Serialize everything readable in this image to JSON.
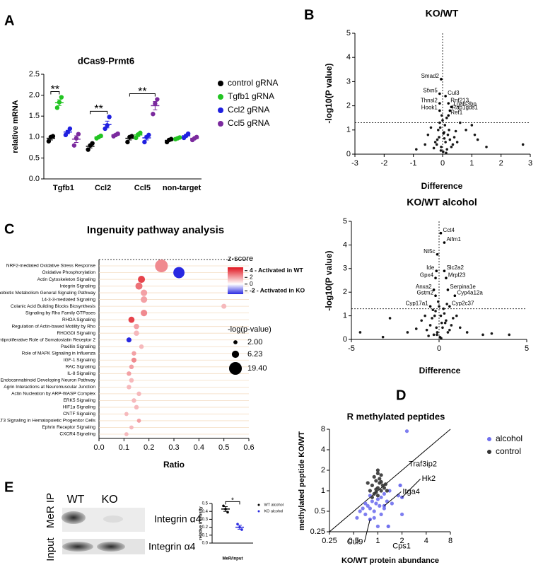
{
  "chart_data": [
    {
      "type": "dot",
      "panel": "A",
      "title": "dCas9-Prmt6",
      "ylabel": "relative mRNA",
      "categories": [
        "Tgfb1",
        "Ccl2",
        "Ccl5",
        "non-target"
      ],
      "ylim": [
        0,
        2.5
      ],
      "yticks": [
        {
          "value": 0,
          "label": "0.0"
        },
        0.5,
        {
          "value": 1,
          "label": "1.0"
        },
        1.5,
        {
          "value": 2,
          "label": "2.0"
        },
        2.5
      ],
      "significance": [
        "**",
        "**",
        "**",
        null
      ],
      "legend": "right",
      "series": [
        {
          "name": "control gRNA",
          "color": "#000000",
          "values": [
            0.97,
            0.78,
            0.97,
            0.92
          ],
          "errors": [
            0.04,
            0.04,
            0.04,
            0.02
          ],
          "points": [
            [
              0.9,
              1.0,
              1.02
            ],
            [
              0.7,
              0.8,
              0.85
            ],
            [
              0.88,
              1.0,
              1.02
            ],
            [
              0.88,
              0.93,
              0.95
            ]
          ]
        },
        {
          "name": "Tgfb1 gRNA",
          "color": "#22c422",
          "values": [
            1.82,
            1.0,
            1.05,
            0.97
          ],
          "errors": [
            0.07,
            0.02,
            0.04,
            0.01
          ],
          "points": [
            [
              1.7,
              1.83,
              1.95
            ],
            [
              0.97,
              1.0,
              1.03
            ],
            [
              0.98,
              1.06,
              1.1
            ],
            [
              0.95,
              0.97,
              0.99
            ]
          ]
        },
        {
          "name": "Ccl2 gRNA",
          "color": "#1f1fe0",
          "values": [
            1.12,
            1.3,
            0.98,
            1.03
          ],
          "errors": [
            0.04,
            0.08,
            0.05,
            0.03
          ],
          "points": [
            [
              1.05,
              1.12,
              1.2
            ],
            [
              1.2,
              1.28,
              1.48
            ],
            [
              0.88,
              1.0,
              1.05
            ],
            [
              0.98,
              1.03,
              1.08
            ]
          ]
        },
        {
          "name": "Ccl5 gRNA",
          "color": "#7b2a9e",
          "values": [
            0.95,
            1.05,
            1.75,
            0.97
          ],
          "errors": [
            0.08,
            0.02,
            0.1,
            0.02
          ],
          "points": [
            [
              0.8,
              0.97,
              1.07
            ],
            [
              1.02,
              1.05,
              1.08
            ],
            [
              1.55,
              1.8,
              1.9
            ],
            [
              0.93,
              0.97,
              1.0
            ]
          ]
        }
      ]
    },
    {
      "type": "scatter",
      "panel": "B",
      "title": "KO/WT",
      "xlabel": "Difference",
      "ylabel": "-log10(P value)",
      "xlim": [
        -3,
        3
      ],
      "xticks": [
        -3,
        -2,
        -1,
        0,
        1,
        2,
        3
      ],
      "ylim": [
        0,
        5
      ],
      "yticks": [
        0,
        1,
        2,
        3,
        4,
        5
      ],
      "vline": 0,
      "hline": 1.3,
      "annotation_color": "#000000",
      "series": [
        {
          "color": "#000000",
          "x": [
            0.02,
            -0.05,
            0.1,
            -0.12,
            0.15,
            0.05,
            -0.2,
            0.25,
            -0.08,
            0.3,
            0.0,
            -0.15,
            0.18,
            0.08,
            -0.25,
            0.35,
            -0.03,
            0.12,
            0.22,
            -0.1,
            0.06,
            0.4,
            -0.3,
            0.14,
            -0.06,
            0.5,
            0.03,
            -0.18,
            2.75,
            1.5,
            1.2,
            1.1,
            0.8,
            -0.6,
            -0.5,
            -0.9,
            1.0,
            0.6,
            -0.4,
            0.45
          ],
          "y": [
            0.1,
            0.3,
            0.5,
            0.7,
            0.2,
            0.9,
            0.4,
            0.6,
            1.1,
            0.3,
            1.4,
            1.0,
            0.8,
            1.2,
            0.5,
            0.4,
            1.6,
            0.05,
            1.0,
            1.3,
            0.65,
            0.7,
            0.25,
            1.5,
            0.15,
            0.5,
            0.85,
            0.6,
            0.4,
            0.3,
            0.6,
            0.8,
            1.0,
            0.4,
            0.8,
            0.2,
            1.2,
            1.3,
            1.1,
            0.95
          ]
        }
      ],
      "annotations": [
        {
          "text": "Smad2",
          "x": -0.05,
          "y": 3.1
        },
        {
          "text": "Sfxn5",
          "x": -0.1,
          "y": 2.5
        },
        {
          "text": "Thnsl2",
          "x": -0.1,
          "y": 2.1
        },
        {
          "text": "Hook1",
          "x": -0.1,
          "y": 1.8
        },
        {
          "text": "Cul3",
          "x": 0.1,
          "y": 2.4
        },
        {
          "text": "Rnf213",
          "x": 0.2,
          "y": 2.1
        },
        {
          "text": "Lgals3bp",
          "x": 0.3,
          "y": 1.95
        },
        {
          "text": "Rap1gds1",
          "x": 0.25,
          "y": 1.8
        },
        {
          "text": "Ref1",
          "x": 0.2,
          "y": 1.6
        }
      ]
    },
    {
      "type": "scatter",
      "title": "KO/WT alcohol",
      "xlabel": "Difference",
      "ylabel": "-log10(P value)",
      "xlim": [
        -5,
        5
      ],
      "xticks": [
        -5,
        0,
        5
      ],
      "ylim": [
        0,
        5
      ],
      "yticks": [
        0,
        1,
        2,
        3,
        4,
        5
      ],
      "vline": 0,
      "hline": 1.3,
      "annotation_color": "#000000",
      "series": [
        {
          "color": "#000000",
          "x": [
            0.05,
            -0.1,
            0.2,
            -0.3,
            0.4,
            -0.5,
            0.6,
            0.1,
            -0.2,
            0.3,
            -0.4,
            0.0,
            0.5,
            -0.6,
            0.15,
            -0.15,
            0.25,
            -0.25,
            0.7,
            -0.7,
            1.2,
            -1.0,
            1.6,
            -1.8,
            2.5,
            -2.8,
            3.0,
            -3.2,
            -4.5,
            4.0,
            0.35,
            -0.05,
            0.45,
            -0.35,
            0.8,
            -0.8,
            0.12,
            -0.12,
            1.0,
            -1.3
          ],
          "y": [
            0.1,
            0.3,
            0.5,
            0.2,
            0.8,
            0.6,
            0.4,
            1.0,
            1.2,
            1.1,
            0.9,
            1.4,
            0.3,
            0.15,
            0.7,
            0.5,
            1.3,
            1.0,
            0.6,
            0.4,
            0.5,
            0.8,
            0.3,
            0.3,
            0.2,
            0.9,
            0.25,
            0.1,
            0.3,
            0.2,
            0.7,
            1.6,
            1.5,
            1.25,
            0.9,
            1.0,
            0.05,
            0.2,
            1.0,
            0.45
          ]
        }
      ],
      "annotations": [
        {
          "text": "Cct4",
          "x": 0.1,
          "y": 4.5
        },
        {
          "text": "Aifm1",
          "x": 0.3,
          "y": 4.1
        },
        {
          "text": "Nt5c",
          "x": -0.1,
          "y": 3.6
        },
        {
          "text": "Ide",
          "x": -0.15,
          "y": 2.9
        },
        {
          "text": "Gpx4",
          "x": -0.2,
          "y": 2.6
        },
        {
          "text": "Slc2a2",
          "x": 0.3,
          "y": 2.9
        },
        {
          "text": "Mrpl23",
          "x": 0.4,
          "y": 2.6
        },
        {
          "text": "Anxa2",
          "x": -0.3,
          "y": 2.1
        },
        {
          "text": "Gstm2",
          "x": -0.2,
          "y": 1.85
        },
        {
          "text": "Cyp17a1",
          "x": -0.5,
          "y": 1.4
        },
        {
          "text": "Serpina1e",
          "x": 0.5,
          "y": 2.1
        },
        {
          "text": "Cyp4a12a",
          "x": 0.9,
          "y": 1.85
        },
        {
          "text": "Cyp2c37",
          "x": 0.6,
          "y": 1.4
        }
      ]
    },
    {
      "type": "bubble",
      "panel": "C",
      "title": "Ingenuity pathway analysis",
      "xlabel": "Ratio",
      "categories": [
        "NRF2-mediated Oxidative Stress Response",
        "Oxidative Phosphorylation",
        "Actin Cytoskeleton Signaling",
        "Integrin Signaling",
        "Xenobiotic Metabolism General Signaling Pathway",
        "14-3-3-mediated Signaling",
        "Colanic Acid Building Blocks Biosynthesis",
        "Signaling by Rho Family GTPases",
        "RHOA Signaling",
        "Regulation of Actin-based Motility by Rho",
        "RHOGDI Signaling",
        "Antiproliferative Role of Somatostatin Receptor 2",
        "Paxillin Signaling",
        "Role of MAPK Signaling in Influenza",
        "IGF-1 Signaling",
        "RAC Signaling",
        "IL-8 Signaling",
        "Endocannabinoid Developing Neuron Pathway",
        "Agrin Interactions at Neuromuscular Junction",
        "Actin Nucleation by ARP-WASP Complex",
        "ERK5 Signaling",
        "HIF1α Signaling",
        "CNTF Signaling",
        "FLT3 Signaling in Hematopoietic Progenitor Cells",
        "Ephrin Receptor Signaling",
        "CXCR4 Signaling"
      ],
      "values": [
        0.25,
        0.32,
        0.17,
        0.16,
        0.18,
        0.18,
        0.5,
        0.18,
        0.13,
        0.15,
        0.15,
        0.12,
        0.17,
        0.14,
        0.14,
        0.13,
        0.12,
        0.13,
        0.12,
        0.16,
        0.14,
        0.15,
        0.11,
        0.16,
        0.13,
        0.11
      ],
      "z": [
        2.5,
        -3,
        4,
        3,
        2,
        2,
        1.5,
        2.5,
        4,
        2,
        1.5,
        -3,
        1.5,
        2,
        2.5,
        2,
        2,
        1.5,
        1.5,
        1.5,
        1.5,
        1.5,
        1.5,
        2,
        1.5,
        1.5
      ],
      "size": [
        19.4,
        15,
        6,
        6,
        5,
        5,
        3,
        5,
        4.5,
        3.5,
        3.5,
        3,
        2.5,
        2.5,
        3,
        2.5,
        2.5,
        2.5,
        2.5,
        2.5,
        2.5,
        2.5,
        2,
        2,
        2,
        2
      ],
      "xlim": [
        0,
        0.6
      ],
      "xticks": [
        {
          "value": 0,
          "label": "0.0"
        },
        0.1,
        0.2,
        0.3,
        0.4,
        0.5,
        0.6
      ],
      "colorbar_title": "z-score",
      "zlim": [
        -3,
        5
      ],
      "zticks": [
        {
          "value": 4,
          "label": "4 - Activated in WT"
        },
        2,
        0,
        {
          "value": -2,
          "label": "-2 - Activated in KO"
        }
      ],
      "size_title": "-log(p-value)",
      "size_legend": [
        {
          "value": 2,
          "label": "2.00"
        },
        6.23,
        {
          "value": 19.4,
          "label": "19.40"
        }
      ]
    },
    {
      "type": "scatter",
      "panel": "D",
      "title": "R methylated peptides",
      "xlabel": "KO/WT protein abundance",
      "ylabel": "methylated peptide KO/WT",
      "log_base": 2,
      "xlim": [
        0.25,
        8
      ],
      "xticks": [
        0.25,
        0.5,
        1,
        2,
        4,
        8
      ],
      "ylim": [
        0.25,
        8
      ],
      "yticks": [
        0.25,
        0.5,
        1,
        2,
        4,
        8
      ],
      "diagonal": true,
      "legend": "upper right",
      "annotation_color": "#7070ee",
      "series": [
        {
          "name": "alcohol",
          "color": "#7070ee",
          "x": [
            0.55,
            0.6,
            0.7,
            0.75,
            0.8,
            0.85,
            0.9,
            0.95,
            1.0,
            1.05,
            1.1,
            1.2,
            1.3,
            1.5,
            1.8,
            2.0,
            0.65,
            0.9,
            1.0,
            1.1,
            0.8,
            1.2,
            0.7,
            1.4,
            2.3
          ],
          "y": [
            0.4,
            0.5,
            0.45,
            0.6,
            0.55,
            0.7,
            0.5,
            0.65,
            0.75,
            0.6,
            0.8,
            0.55,
            0.7,
            0.65,
            0.85,
            0.45,
            0.55,
            0.4,
            0.3,
            0.45,
            0.85,
            0.9,
            0.65,
            1.0,
            7.5
          ]
        },
        {
          "name": "control",
          "color": "#333333",
          "x": [
            0.8,
            0.85,
            0.9,
            0.95,
            1.0,
            1.0,
            1.05,
            1.1,
            1.15,
            1.2,
            0.9,
            0.95,
            1.0,
            1.05,
            1.1,
            0.85,
            1.25,
            0.75,
            1.3,
            1.0,
            0.95,
            1.1
          ],
          "y": [
            1.0,
            1.2,
            0.9,
            1.4,
            1.1,
            1.8,
            1.3,
            1.0,
            1.2,
            1.1,
            1.6,
            0.95,
            2.0,
            1.5,
            1.35,
            0.8,
            1.25,
            1.3,
            1.0,
            0.85,
            1.05,
            1.7
          ]
        }
      ],
      "annotations": [
        {
          "text": "Traf3ip2",
          "x": 1.9,
          "y": 1.2
        },
        {
          "text": "Hk2",
          "x": 2.0,
          "y": 0.8
        },
        {
          "text": "Itga4",
          "x": 1.2,
          "y": 0.6
        },
        {
          "text": "Cul9",
          "x": 0.8,
          "y": 0.38
        },
        {
          "text": "Cps1",
          "x": 1.35,
          "y": 0.3
        }
      ]
    },
    {
      "type": "dot",
      "panel": "E",
      "xlabel": "MeR/input",
      "ylabel": "relative intensity",
      "categories": [
        null
      ],
      "ylim": [
        0,
        0.5
      ],
      "yticks": [
        {
          "value": 0,
          "label": "0.0"
        },
        0.1,
        0.2,
        0.3,
        0.4,
        0.5
      ],
      "significance": [
        "*"
      ],
      "legend": "right",
      "series": [
        {
          "name": "WT alcohol",
          "color": "#000000",
          "values": [
            0.43
          ],
          "errors": [
            0.03
          ],
          "points": [
            [
              0.47,
              0.43,
              0.39
            ]
          ]
        },
        {
          "name": "KO alcohol",
          "color": "#2b2be0",
          "values": [
            0.2
          ],
          "errors": [
            0.025
          ],
          "points": [
            [
              0.24,
              0.2,
              0.17
            ]
          ]
        }
      ]
    }
  ],
  "blot": {
    "columns": [
      "WT",
      "KO"
    ],
    "rows": [
      "MeR IP",
      "Input"
    ],
    "bands": [
      "Integrin α4",
      "Integrin α4"
    ]
  }
}
